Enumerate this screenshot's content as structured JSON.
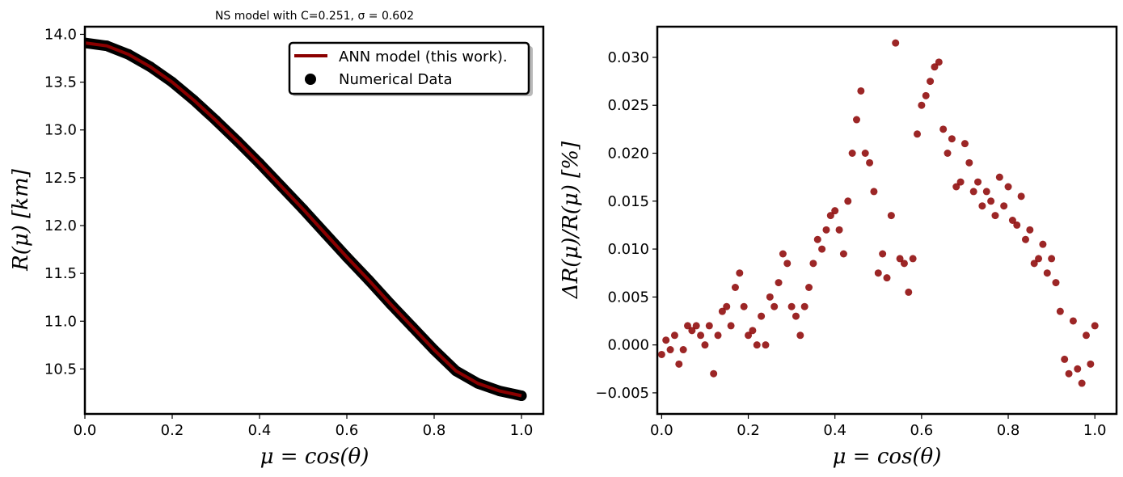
{
  "chart_data": [
    {
      "type": "line",
      "title": "NS model with C=0.251, σ = 0.602",
      "xlabel": "μ = cos(θ)",
      "ylabel": "R(μ) [km]",
      "xlim": [
        0.0,
        1.05
      ],
      "ylim": [
        10.03,
        14.08
      ],
      "xticks": [
        "0.0",
        "0.2",
        "0.4",
        "0.6",
        "0.8",
        "1.0"
      ],
      "yticks": [
        "10.5",
        "11.0",
        "11.5",
        "12.0",
        "12.5",
        "13.0",
        "13.5",
        "14.0"
      ],
      "grid": false,
      "legend_position": "top-right",
      "series": [
        {
          "name": "ANN model (this work).",
          "kind": "line",
          "color": "#8b0000",
          "x": [
            0.0,
            0.05,
            0.1,
            0.15,
            0.2,
            0.25,
            0.3,
            0.35,
            0.4,
            0.45,
            0.5,
            0.55,
            0.6,
            0.65,
            0.7,
            0.75,
            0.8,
            0.85,
            0.9,
            0.95,
            1.0
          ],
          "y": [
            13.91,
            13.88,
            13.79,
            13.66,
            13.5,
            13.31,
            13.1,
            12.88,
            12.65,
            12.41,
            12.17,
            11.92,
            11.67,
            11.43,
            11.18,
            10.94,
            10.7,
            10.48,
            10.35,
            10.27,
            10.22
          ]
        },
        {
          "name": "Numerical Data",
          "kind": "scatter",
          "color": "#000000",
          "x": [
            0.0,
            0.05,
            0.1,
            0.15,
            0.2,
            0.25,
            0.3,
            0.35,
            0.4,
            0.45,
            0.5,
            0.55,
            0.6,
            0.65,
            0.7,
            0.75,
            0.8,
            0.85,
            0.9,
            0.95,
            1.0
          ],
          "y": [
            13.91,
            13.88,
            13.79,
            13.66,
            13.5,
            13.31,
            13.1,
            12.88,
            12.65,
            12.41,
            12.17,
            11.92,
            11.67,
            11.43,
            11.18,
            10.94,
            10.7,
            10.48,
            10.35,
            10.27,
            10.22
          ]
        }
      ]
    },
    {
      "type": "scatter",
      "title": "",
      "xlabel": "μ = cos(θ)",
      "ylabel": "ΔR(μ)/R(μ) [%]",
      "xlim": [
        -0.01,
        1.05
      ],
      "ylim": [
        -0.0072,
        0.0332
      ],
      "xticks": [
        "0.0",
        "0.2",
        "0.4",
        "0.6",
        "0.8",
        "1.0"
      ],
      "yticks": [
        "−0.005",
        "0.000",
        "0.005",
        "0.010",
        "0.015",
        "0.020",
        "0.025",
        "0.030"
      ],
      "grid": false,
      "series": [
        {
          "color": "#8b0000",
          "x": [
            0.0,
            0.01,
            0.02,
            0.03,
            0.04,
            0.05,
            0.06,
            0.07,
            0.08,
            0.09,
            0.1,
            0.11,
            0.12,
            0.13,
            0.14,
            0.15,
            0.16,
            0.17,
            0.18,
            0.19,
            0.2,
            0.21,
            0.22,
            0.23,
            0.24,
            0.25,
            0.26,
            0.27,
            0.28,
            0.29,
            0.3,
            0.31,
            0.32,
            0.33,
            0.34,
            0.35,
            0.36,
            0.37,
            0.38,
            0.39,
            0.4,
            0.41,
            0.42,
            0.43,
            0.44,
            0.45,
            0.46,
            0.47,
            0.48,
            0.49,
            0.5,
            0.51,
            0.52,
            0.53,
            0.54,
            0.55,
            0.56,
            0.57,
            0.58,
            0.59,
            0.6,
            0.61,
            0.62,
            0.63,
            0.64,
            0.65,
            0.66,
            0.67,
            0.68,
            0.69,
            0.7,
            0.71,
            0.72,
            0.73,
            0.74,
            0.75,
            0.76,
            0.77,
            0.78,
            0.79,
            0.8,
            0.81,
            0.82,
            0.83,
            0.84,
            0.85,
            0.86,
            0.87,
            0.88,
            0.89,
            0.9,
            0.91,
            0.92,
            0.93,
            0.94,
            0.95,
            0.96,
            0.97,
            0.98,
            0.99,
            1.0
          ],
          "y": [
            -0.001,
            0.0005,
            -0.0005,
            0.001,
            -0.002,
            -0.0005,
            0.002,
            0.0015,
            0.002,
            0.001,
            0.0,
            0.002,
            -0.003,
            0.001,
            0.0035,
            0.004,
            0.002,
            0.006,
            0.0075,
            0.004,
            0.001,
            0.0015,
            0.0,
            0.003,
            0.0,
            0.005,
            0.004,
            0.0065,
            0.0095,
            0.0085,
            0.004,
            0.003,
            0.001,
            0.004,
            0.006,
            0.0085,
            0.011,
            0.01,
            0.012,
            0.0135,
            0.014,
            0.012,
            0.0095,
            0.015,
            0.02,
            0.0235,
            0.0265,
            0.02,
            0.019,
            0.016,
            0.0075,
            0.0095,
            0.007,
            0.0135,
            0.0315,
            0.009,
            0.0085,
            0.0055,
            0.009,
            0.022,
            0.025,
            0.026,
            0.0275,
            0.029,
            0.0295,
            0.0225,
            0.02,
            0.0215,
            0.0165,
            0.017,
            0.021,
            0.019,
            0.016,
            0.017,
            0.0145,
            0.016,
            0.015,
            0.0135,
            0.0175,
            0.0145,
            0.0165,
            0.013,
            0.0125,
            0.0155,
            0.011,
            0.012,
            0.0085,
            0.009,
            0.0105,
            0.0075,
            0.009,
            0.0065,
            0.0035,
            -0.0015,
            -0.003,
            0.0025,
            -0.0025,
            -0.004,
            0.001,
            -0.002,
            0.002
          ]
        }
      ]
    }
  ]
}
